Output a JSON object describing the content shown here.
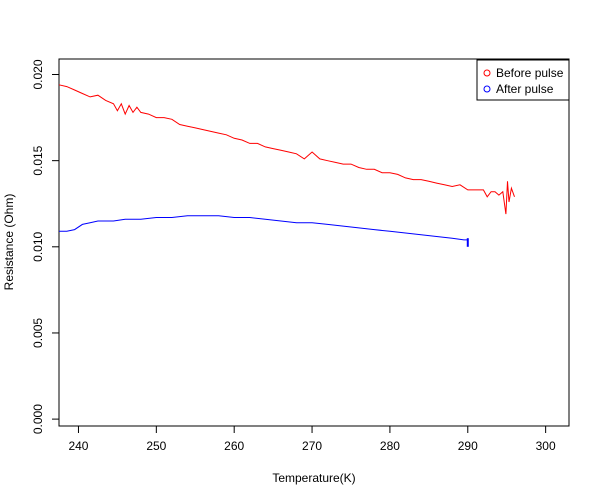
{
  "chart_data": {
    "type": "line",
    "title": "",
    "xlabel": "Temperature(K)",
    "ylabel": "Resistance (Ohm)",
    "xlim": [
      237.5,
      303
    ],
    "ylim": [
      -0.0004,
      0.0209
    ],
    "xticks": [
      240,
      250,
      260,
      270,
      280,
      290,
      300
    ],
    "xtick_labels": [
      "240",
      "250",
      "260",
      "270",
      "280",
      "290",
      "300"
    ],
    "yticks": [
      0.0,
      0.005,
      0.01,
      0.015,
      0.02
    ],
    "ytick_labels": [
      "0.000",
      "0.005",
      "0.010",
      "0.015",
      "0.020"
    ],
    "grid": false,
    "legend_position": "top-right",
    "series": [
      {
        "name": "Before pulse",
        "color": "#ff0000",
        "x": [
          237.5,
          238.5,
          239.5,
          240.5,
          241.5,
          242.5,
          243.5,
          244.5,
          245,
          245.5,
          246,
          246.5,
          247,
          247.5,
          248,
          249,
          250,
          251,
          252,
          253,
          254,
          255,
          256,
          257,
          258,
          259,
          260,
          261,
          262,
          263,
          264,
          265,
          266,
          267,
          268,
          269,
          270,
          271,
          272,
          273,
          274,
          275,
          276,
          277,
          278,
          279,
          280,
          281,
          282,
          283,
          284,
          285,
          286,
          287,
          288,
          289,
          290,
          291,
          292,
          292.5,
          293,
          293.5,
          294,
          294.5,
          294.9,
          295.1,
          295.3,
          295.6,
          296
        ],
        "values": [
          0.0194,
          0.0193,
          0.0191,
          0.0189,
          0.0187,
          0.0188,
          0.0185,
          0.0183,
          0.0179,
          0.0183,
          0.0177,
          0.0182,
          0.0178,
          0.0181,
          0.0178,
          0.0177,
          0.0175,
          0.0175,
          0.0174,
          0.0171,
          0.017,
          0.0169,
          0.0168,
          0.0167,
          0.0166,
          0.0165,
          0.0163,
          0.0162,
          0.016,
          0.016,
          0.0158,
          0.0157,
          0.0156,
          0.0155,
          0.0154,
          0.0151,
          0.0155,
          0.0151,
          0.015,
          0.0149,
          0.0148,
          0.0148,
          0.0146,
          0.0145,
          0.0145,
          0.0143,
          0.0143,
          0.0142,
          0.014,
          0.0139,
          0.0139,
          0.0138,
          0.0137,
          0.0136,
          0.0135,
          0.0136,
          0.0133,
          0.0133,
          0.0133,
          0.0129,
          0.0132,
          0.0132,
          0.013,
          0.0132,
          0.0119,
          0.0138,
          0.0126,
          0.0134,
          0.0129
        ]
      },
      {
        "name": "After pulse",
        "color": "#0000ff",
        "x": [
          237.5,
          238.5,
          239.5,
          240.5,
          241.5,
          242.5,
          243.5,
          244.5,
          246,
          248,
          250,
          252,
          254,
          256,
          258,
          260,
          262,
          264,
          266,
          268,
          270,
          272,
          274,
          276,
          278,
          280,
          282,
          284,
          286,
          288,
          289.5,
          290
        ],
        "values": [
          0.0109,
          0.0109,
          0.011,
          0.0113,
          0.0114,
          0.0115,
          0.0115,
          0.0115,
          0.0116,
          0.0116,
          0.0117,
          0.0117,
          0.0118,
          0.0118,
          0.0118,
          0.0117,
          0.0117,
          0.0116,
          0.0115,
          0.0114,
          0.0114,
          0.0113,
          0.0112,
          0.0111,
          0.011,
          0.0109,
          0.0108,
          0.0107,
          0.0106,
          0.0105,
          0.0104,
          0.0104
        ]
      }
    ]
  }
}
